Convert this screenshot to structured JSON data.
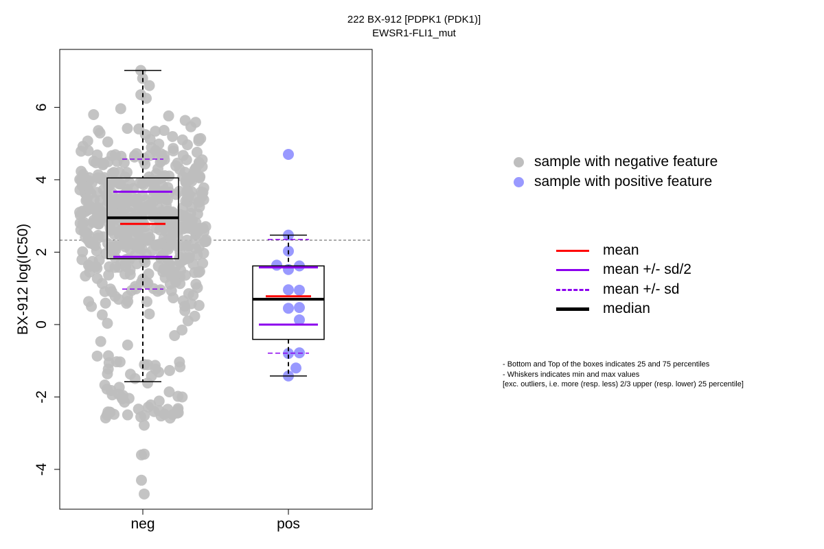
{
  "chart_data": {
    "type": "box",
    "title": "222 BX-912 [PDPK1 (PDK1)]",
    "subtitle": "EWSR1-FLI1_mut",
    "ylabel": "BX-912 log(IC50)",
    "ylim": [
      -5.1,
      7.6
    ],
    "yticks": [
      -4,
      -2,
      0,
      2,
      4,
      6
    ],
    "categories": [
      "neg",
      "pos"
    ],
    "threshold": 2.33,
    "groups": [
      {
        "name": "neg",
        "color": "#bebebe",
        "box": {
          "q1": 1.82,
          "median": 2.95,
          "q3": 4.05,
          "whisker_low": -1.58,
          "whisker_high": 7.02
        },
        "mean": 2.78,
        "mean_minus_half_sd": 1.87,
        "mean_plus_half_sd": 3.67,
        "mean_minus_sd": 0.98,
        "mean_plus_sd": 4.57,
        "outliers_low": [
          -2.78,
          -3.6,
          -3.58,
          -4.3,
          -4.68
        ]
      },
      {
        "name": "pos",
        "color": "#9999ff",
        "box": {
          "q1": -0.41,
          "median": 0.7,
          "q3": 1.62,
          "whisker_low": -1.42,
          "whisker_high": 2.47
        },
        "mean": 0.78,
        "mean_minus_half_sd": 0.0,
        "mean_plus_half_sd": 1.58,
        "mean_minus_sd": -0.79,
        "mean_plus_sd": 2.35,
        "values": [
          4.7,
          2.47,
          2.03,
          1.64,
          1.62,
          1.52,
          0.96,
          0.95,
          0.45,
          0.47,
          0.13,
          -0.8,
          -0.78,
          -1.2,
          -1.42
        ]
      }
    ]
  },
  "legend": {
    "points": [
      {
        "label": "sample with negative feature",
        "color": "#bebebe"
      },
      {
        "label": "sample with positive feature",
        "color": "#9999ff"
      }
    ],
    "lines": [
      {
        "label": "mean",
        "color": "#ff0000",
        "style": "solid",
        "weight": "normal"
      },
      {
        "label": "mean +/- sd/2",
        "color": "#8b00ee",
        "style": "solid",
        "weight": "normal"
      },
      {
        "label": "mean +/- sd",
        "color": "#8b00ee",
        "style": "dashed",
        "weight": "normal"
      },
      {
        "label": "median",
        "color": "#000000",
        "style": "solid",
        "weight": "thick"
      }
    ]
  },
  "notes": [
    "- Bottom and Top of the boxes indicates 25 and 75 percentiles",
    "- Whiskers indicates min and max values",
    "[exc. outliers, i.e. more (resp. less) 2/3 upper (resp. lower) 25 percentile]"
  ]
}
